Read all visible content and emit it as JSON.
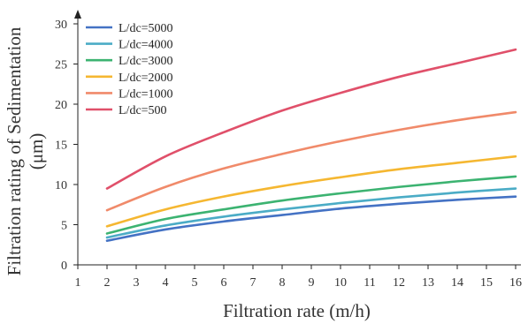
{
  "chart_data": {
    "type": "line",
    "xlabel": "Filtration rate (m/h)",
    "ylabel_line1": "Filtration rating of Sedimentation",
    "ylabel_line2": "(μm)",
    "xlim": [
      1,
      16
    ],
    "ylim": [
      0,
      30
    ],
    "xticks": [
      "1",
      "2",
      "3",
      "4",
      "5",
      "6",
      "7",
      "8",
      "9",
      "10",
      "11",
      "12",
      "13",
      "14",
      "15",
      "16"
    ],
    "yticks": [
      "0",
      "5",
      "10",
      "15",
      "20",
      "25",
      "30"
    ],
    "grid": false,
    "legend_position": "top-left",
    "x": [
      2,
      4,
      6,
      8,
      10,
      12,
      14,
      16
    ],
    "series": [
      {
        "name": "L/dc=5000",
        "color": "#4472c4",
        "values": [
          3.0,
          4.4,
          5.4,
          6.2,
          7.0,
          7.6,
          8.1,
          8.5
        ]
      },
      {
        "name": "L/dc=4000",
        "color": "#4bacc6",
        "values": [
          3.4,
          4.9,
          6.0,
          6.9,
          7.7,
          8.4,
          9.0,
          9.5
        ]
      },
      {
        "name": "L/dc=3000",
        "color": "#3cb371",
        "values": [
          3.9,
          5.7,
          6.9,
          8.0,
          8.9,
          9.7,
          10.4,
          11.0
        ]
      },
      {
        "name": "L/dc=2000",
        "color": "#f5b731",
        "values": [
          4.8,
          6.9,
          8.5,
          9.8,
          10.9,
          11.9,
          12.7,
          13.5
        ]
      },
      {
        "name": "L/dc=1000",
        "color": "#f08a6a",
        "values": [
          6.8,
          9.7,
          12.0,
          13.8,
          15.4,
          16.8,
          18.0,
          19.0
        ]
      },
      {
        "name": "L/dc=500",
        "color": "#e0506a",
        "values": [
          9.5,
          13.5,
          16.5,
          19.2,
          21.4,
          23.4,
          25.1,
          26.8
        ]
      }
    ]
  }
}
